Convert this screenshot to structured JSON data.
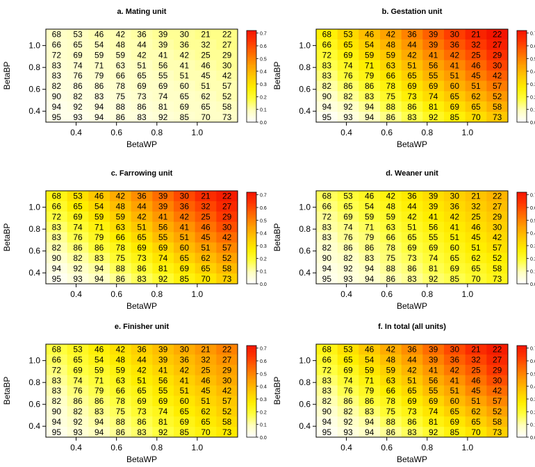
{
  "figure": {
    "colorbar": {
      "ticks": [
        "0.0",
        "0.1",
        "0.2",
        "0.3",
        "0.4",
        "0.5",
        "0.6",
        "0.7"
      ],
      "colors": [
        "#ffffff",
        "#ffffc0",
        "#ffff40",
        "#ffee00",
        "#ffc800",
        "#ff9d00",
        "#ff6c00",
        "#ff3800",
        "#f41400"
      ]
    }
  },
  "chart_data": [
    {
      "type": "heatmap",
      "title": "a. Mating unit",
      "xlabel": "BetaWP",
      "ylabel": "BetaBP",
      "x_ticks": [
        "0.4",
        "0.6",
        "0.8",
        "1.0"
      ],
      "y_ticks": [
        "0.4",
        "0.6",
        "0.8",
        "1.0"
      ],
      "labels": [
        [
          68,
          53,
          46,
          42,
          36,
          39,
          30,
          21,
          22
        ],
        [
          66,
          65,
          54,
          48,
          44,
          39,
          36,
          32,
          27
        ],
        [
          72,
          69,
          59,
          59,
          42,
          41,
          42,
          25,
          29
        ],
        [
          83,
          74,
          71,
          63,
          51,
          56,
          41,
          46,
          30
        ],
        [
          83,
          76,
          79,
          66,
          65,
          55,
          51,
          45,
          42
        ],
        [
          82,
          86,
          86,
          78,
          69,
          69,
          60,
          51,
          57
        ],
        [
          90,
          82,
          83,
          75,
          73,
          74,
          65,
          62,
          52
        ],
        [
          94,
          92,
          94,
          88,
          86,
          81,
          69,
          65,
          58
        ],
        [
          95,
          93,
          94,
          86,
          83,
          92,
          85,
          70,
          73
        ]
      ],
      "values": [
        [
          0.08,
          0.09,
          0.1,
          0.1,
          0.11,
          0.12,
          0.12,
          0.13,
          0.13
        ],
        [
          0.07,
          0.08,
          0.09,
          0.1,
          0.1,
          0.11,
          0.12,
          0.12,
          0.13
        ],
        [
          0.07,
          0.08,
          0.08,
          0.09,
          0.1,
          0.1,
          0.11,
          0.12,
          0.12
        ],
        [
          0.06,
          0.07,
          0.08,
          0.08,
          0.09,
          0.1,
          0.1,
          0.11,
          0.12
        ],
        [
          0.05,
          0.06,
          0.07,
          0.08,
          0.08,
          0.09,
          0.1,
          0.1,
          0.11
        ],
        [
          0.05,
          0.05,
          0.06,
          0.07,
          0.08,
          0.08,
          0.09,
          0.1,
          0.1
        ],
        [
          0.04,
          0.05,
          0.05,
          0.06,
          0.07,
          0.08,
          0.08,
          0.09,
          0.1
        ],
        [
          0.03,
          0.04,
          0.05,
          0.05,
          0.06,
          0.07,
          0.08,
          0.08,
          0.09
        ],
        [
          0.03,
          0.03,
          0.04,
          0.05,
          0.05,
          0.06,
          0.07,
          0.08,
          0.08
        ]
      ]
    },
    {
      "type": "heatmap",
      "title": "b. Gestation unit",
      "xlabel": "BetaWP",
      "ylabel": "BetaBP",
      "x_ticks": [
        "0.4",
        "0.6",
        "0.8",
        "1.0"
      ],
      "y_ticks": [
        "0.4",
        "0.6",
        "0.8",
        "1.0"
      ],
      "labels": [
        [
          68,
          53,
          46,
          42,
          36,
          39,
          30,
          21,
          22
        ],
        [
          66,
          65,
          54,
          48,
          44,
          39,
          36,
          32,
          27
        ],
        [
          72,
          69,
          59,
          59,
          42,
          41,
          42,
          25,
          29
        ],
        [
          83,
          74,
          71,
          63,
          51,
          56,
          41,
          46,
          30
        ],
        [
          83,
          76,
          79,
          66,
          65,
          55,
          51,
          45,
          42
        ],
        [
          82,
          86,
          86,
          78,
          69,
          69,
          60,
          51,
          57
        ],
        [
          90,
          82,
          83,
          75,
          73,
          74,
          65,
          62,
          52
        ],
        [
          94,
          92,
          94,
          88,
          86,
          81,
          69,
          65,
          58
        ],
        [
          95,
          93,
          94,
          86,
          83,
          92,
          85,
          70,
          73
        ]
      ],
      "values": [
        [
          0.26,
          0.32,
          0.38,
          0.44,
          0.5,
          0.56,
          0.62,
          0.68,
          0.72
        ],
        [
          0.23,
          0.29,
          0.34,
          0.4,
          0.46,
          0.52,
          0.58,
          0.63,
          0.69
        ],
        [
          0.2,
          0.25,
          0.31,
          0.36,
          0.42,
          0.48,
          0.54,
          0.59,
          0.65
        ],
        [
          0.17,
          0.22,
          0.27,
          0.33,
          0.38,
          0.44,
          0.49,
          0.55,
          0.61
        ],
        [
          0.14,
          0.19,
          0.24,
          0.29,
          0.34,
          0.4,
          0.45,
          0.51,
          0.56
        ],
        [
          0.11,
          0.15,
          0.2,
          0.25,
          0.3,
          0.35,
          0.41,
          0.46,
          0.51
        ],
        [
          0.08,
          0.12,
          0.16,
          0.21,
          0.26,
          0.31,
          0.36,
          0.41,
          0.46
        ],
        [
          0.05,
          0.08,
          0.12,
          0.17,
          0.21,
          0.26,
          0.31,
          0.36,
          0.41
        ],
        [
          0.02,
          0.05,
          0.09,
          0.13,
          0.17,
          0.22,
          0.26,
          0.31,
          0.36
        ]
      ]
    },
    {
      "type": "heatmap",
      "title": "c. Farrowing unit",
      "xlabel": "BetaWP",
      "ylabel": "BetaBP",
      "x_ticks": [
        "0.4",
        "0.6",
        "0.8",
        "1.0"
      ],
      "y_ticks": [
        "0.4",
        "0.6",
        "0.8",
        "1.0"
      ],
      "labels": [
        [
          68,
          53,
          46,
          42,
          36,
          39,
          30,
          21,
          22
        ],
        [
          66,
          65,
          54,
          48,
          44,
          39,
          36,
          32,
          27
        ],
        [
          72,
          69,
          59,
          59,
          42,
          41,
          42,
          25,
          29
        ],
        [
          83,
          74,
          71,
          63,
          51,
          56,
          41,
          46,
          30
        ],
        [
          83,
          76,
          79,
          66,
          65,
          55,
          51,
          45,
          42
        ],
        [
          82,
          86,
          86,
          78,
          69,
          69,
          60,
          51,
          57
        ],
        [
          90,
          82,
          83,
          75,
          73,
          74,
          65,
          62,
          52
        ],
        [
          94,
          92,
          94,
          88,
          86,
          81,
          69,
          65,
          58
        ],
        [
          95,
          93,
          94,
          86,
          83,
          92,
          85,
          70,
          73
        ]
      ],
      "values": [
        [
          0.24,
          0.3,
          0.36,
          0.42,
          0.48,
          0.54,
          0.6,
          0.66,
          0.7
        ],
        [
          0.21,
          0.27,
          0.32,
          0.38,
          0.44,
          0.5,
          0.56,
          0.61,
          0.67
        ],
        [
          0.18,
          0.23,
          0.29,
          0.34,
          0.4,
          0.46,
          0.52,
          0.57,
          0.63
        ],
        [
          0.15,
          0.2,
          0.25,
          0.31,
          0.36,
          0.42,
          0.47,
          0.53,
          0.59
        ],
        [
          0.12,
          0.17,
          0.22,
          0.27,
          0.32,
          0.38,
          0.43,
          0.49,
          0.54
        ],
        [
          0.1,
          0.14,
          0.19,
          0.23,
          0.28,
          0.33,
          0.39,
          0.44,
          0.49
        ],
        [
          0.07,
          0.11,
          0.15,
          0.2,
          0.24,
          0.29,
          0.34,
          0.39,
          0.44
        ],
        [
          0.04,
          0.08,
          0.11,
          0.16,
          0.2,
          0.25,
          0.29,
          0.34,
          0.39
        ],
        [
          0.02,
          0.05,
          0.08,
          0.12,
          0.16,
          0.2,
          0.25,
          0.29,
          0.34
        ]
      ]
    },
    {
      "type": "heatmap",
      "title": "d. Weaner unit",
      "xlabel": "BetaWP",
      "ylabel": "BetaBP",
      "x_ticks": [
        "0.4",
        "0.6",
        "0.8",
        "1.0"
      ],
      "y_ticks": [
        "0.4",
        "0.6",
        "0.8",
        "1.0"
      ],
      "labels": [
        [
          68,
          53,
          46,
          42,
          36,
          39,
          30,
          21,
          22
        ],
        [
          66,
          65,
          54,
          48,
          44,
          39,
          36,
          32,
          27
        ],
        [
          72,
          69,
          59,
          59,
          42,
          41,
          42,
          25,
          29
        ],
        [
          83,
          74,
          71,
          63,
          51,
          56,
          41,
          46,
          30
        ],
        [
          83,
          76,
          79,
          66,
          65,
          55,
          51,
          45,
          42
        ],
        [
          82,
          86,
          86,
          78,
          69,
          69,
          60,
          51,
          57
        ],
        [
          90,
          82,
          83,
          75,
          73,
          74,
          65,
          62,
          52
        ],
        [
          94,
          92,
          94,
          88,
          86,
          81,
          69,
          65,
          58
        ],
        [
          95,
          93,
          94,
          86,
          83,
          92,
          85,
          70,
          73
        ]
      ],
      "values": [
        [
          0.16,
          0.19,
          0.22,
          0.25,
          0.28,
          0.31,
          0.34,
          0.37,
          0.4
        ],
        [
          0.14,
          0.17,
          0.2,
          0.23,
          0.26,
          0.29,
          0.32,
          0.35,
          0.38
        ],
        [
          0.12,
          0.15,
          0.18,
          0.21,
          0.24,
          0.27,
          0.3,
          0.33,
          0.36
        ],
        [
          0.11,
          0.13,
          0.16,
          0.19,
          0.22,
          0.25,
          0.28,
          0.31,
          0.34
        ],
        [
          0.09,
          0.12,
          0.14,
          0.17,
          0.2,
          0.23,
          0.26,
          0.29,
          0.32
        ],
        [
          0.07,
          0.1,
          0.13,
          0.15,
          0.18,
          0.21,
          0.24,
          0.27,
          0.3
        ],
        [
          0.06,
          0.08,
          0.11,
          0.14,
          0.16,
          0.19,
          0.22,
          0.25,
          0.27
        ],
        [
          0.04,
          0.06,
          0.09,
          0.12,
          0.14,
          0.17,
          0.2,
          0.22,
          0.25
        ],
        [
          0.03,
          0.05,
          0.07,
          0.1,
          0.12,
          0.15,
          0.17,
          0.2,
          0.23
        ]
      ]
    },
    {
      "type": "heatmap",
      "title": "e. Finisher unit",
      "xlabel": "BetaWP",
      "ylabel": "BetaBP",
      "x_ticks": [
        "0.4",
        "0.6",
        "0.8",
        "1.0"
      ],
      "y_ticks": [
        "0.4",
        "0.6",
        "0.8",
        "1.0"
      ],
      "labels": [
        [
          68,
          53,
          46,
          42,
          36,
          39,
          30,
          21,
          22
        ],
        [
          66,
          65,
          54,
          48,
          44,
          39,
          36,
          32,
          27
        ],
        [
          72,
          69,
          59,
          59,
          42,
          41,
          42,
          25,
          29
        ],
        [
          83,
          74,
          71,
          63,
          51,
          56,
          41,
          46,
          30
        ],
        [
          83,
          76,
          79,
          66,
          65,
          55,
          51,
          45,
          42
        ],
        [
          82,
          86,
          86,
          78,
          69,
          69,
          60,
          51,
          57
        ],
        [
          90,
          82,
          83,
          75,
          73,
          74,
          65,
          62,
          52
        ],
        [
          94,
          92,
          94,
          88,
          86,
          81,
          69,
          65,
          58
        ],
        [
          95,
          93,
          94,
          86,
          83,
          92,
          85,
          70,
          73
        ]
      ],
      "values": [
        [
          0.18,
          0.22,
          0.26,
          0.3,
          0.34,
          0.38,
          0.42,
          0.46,
          0.5
        ],
        [
          0.16,
          0.2,
          0.24,
          0.28,
          0.32,
          0.36,
          0.39,
          0.43,
          0.47
        ],
        [
          0.14,
          0.18,
          0.21,
          0.25,
          0.29,
          0.33,
          0.37,
          0.41,
          0.44
        ],
        [
          0.12,
          0.16,
          0.19,
          0.23,
          0.27,
          0.3,
          0.34,
          0.38,
          0.42
        ],
        [
          0.1,
          0.14,
          0.17,
          0.21,
          0.24,
          0.28,
          0.32,
          0.35,
          0.39
        ],
        [
          0.08,
          0.12,
          0.15,
          0.18,
          0.22,
          0.26,
          0.29,
          0.33,
          0.36
        ],
        [
          0.06,
          0.1,
          0.13,
          0.16,
          0.2,
          0.23,
          0.27,
          0.3,
          0.34
        ],
        [
          0.05,
          0.08,
          0.11,
          0.14,
          0.17,
          0.21,
          0.24,
          0.28,
          0.31
        ],
        [
          0.03,
          0.06,
          0.09,
          0.12,
          0.15,
          0.18,
          0.22,
          0.25,
          0.28
        ]
      ]
    },
    {
      "type": "heatmap",
      "title": "f. In total (all units)",
      "xlabel": "BetaWP",
      "ylabel": "BetaBP",
      "x_ticks": [
        "0.4",
        "0.6",
        "0.8",
        "1.0"
      ],
      "y_ticks": [
        "0.4",
        "0.6",
        "0.8",
        "1.0"
      ],
      "labels": [
        [
          68,
          53,
          46,
          42,
          36,
          39,
          30,
          21,
          22
        ],
        [
          66,
          65,
          54,
          48,
          44,
          39,
          36,
          32,
          27
        ],
        [
          72,
          69,
          59,
          59,
          42,
          41,
          42,
          25,
          29
        ],
        [
          83,
          74,
          71,
          63,
          51,
          56,
          41,
          46,
          30
        ],
        [
          83,
          76,
          79,
          66,
          65,
          55,
          51,
          45,
          42
        ],
        [
          82,
          86,
          86,
          78,
          69,
          69,
          60,
          51,
          57
        ],
        [
          90,
          82,
          83,
          75,
          73,
          74,
          65,
          62,
          52
        ],
        [
          94,
          92,
          94,
          88,
          86,
          81,
          69,
          65,
          58
        ],
        [
          95,
          93,
          94,
          86,
          83,
          92,
          85,
          70,
          73
        ]
      ],
      "values": [
        [
          0.24,
          0.3,
          0.36,
          0.42,
          0.48,
          0.54,
          0.6,
          0.66,
          0.7
        ],
        [
          0.21,
          0.27,
          0.32,
          0.38,
          0.44,
          0.5,
          0.56,
          0.61,
          0.67
        ],
        [
          0.18,
          0.23,
          0.29,
          0.34,
          0.4,
          0.46,
          0.52,
          0.57,
          0.63
        ],
        [
          0.15,
          0.2,
          0.25,
          0.31,
          0.36,
          0.42,
          0.47,
          0.53,
          0.59
        ],
        [
          0.12,
          0.17,
          0.22,
          0.27,
          0.32,
          0.38,
          0.43,
          0.49,
          0.54
        ],
        [
          0.1,
          0.14,
          0.19,
          0.23,
          0.28,
          0.33,
          0.39,
          0.44,
          0.49
        ],
        [
          0.07,
          0.11,
          0.15,
          0.2,
          0.24,
          0.29,
          0.34,
          0.39,
          0.44
        ],
        [
          0.04,
          0.08,
          0.11,
          0.16,
          0.2,
          0.25,
          0.29,
          0.34,
          0.39
        ],
        [
          0.02,
          0.05,
          0.08,
          0.12,
          0.16,
          0.2,
          0.25,
          0.29,
          0.34
        ]
      ]
    }
  ]
}
